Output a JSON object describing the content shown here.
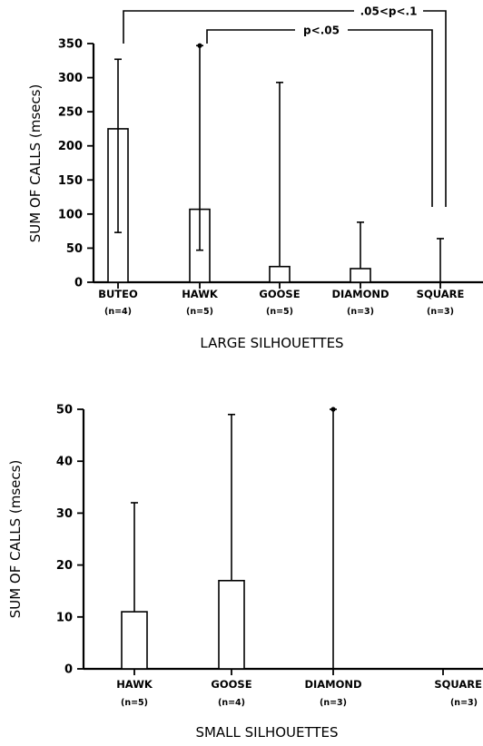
{
  "chart_data": [
    {
      "type": "bar",
      "categories": [
        "BUTEO",
        "HAWK",
        "GOOSE",
        "DIAMOND",
        "SQUARE"
      ],
      "sample_sizes": [
        "(n=4)",
        "(n=5)",
        "(n=5)",
        "(n=3)",
        "(n=3)"
      ],
      "values": [
        225,
        107,
        23,
        20,
        0
      ],
      "error_lower": [
        73,
        47,
        null,
        null,
        null
      ],
      "error_upper": [
        327,
        347,
        293,
        88,
        64
      ],
      "asterisk_on_error": [
        false,
        true,
        false,
        false,
        false
      ],
      "xlabel": "LARGE SILHOUETTES",
      "ylabel": "SUM OF CALLS (msecs)",
      "ylim": [
        0,
        350
      ],
      "yticks": [
        0,
        50,
        100,
        150,
        200,
        250,
        300,
        350
      ],
      "annotations": [
        {
          "text": ".05<p<.1",
          "from": "BUTEO",
          "to": "SQUARE"
        },
        {
          "text": "p<.05",
          "from": "HAWK",
          "to": "SQUARE"
        }
      ]
    },
    {
      "type": "bar",
      "categories": [
        "HAWK",
        "GOOSE",
        "DIAMOND",
        "SQUARE"
      ],
      "sample_sizes": [
        "(n=5)",
        "(n=4)",
        "(n=3)",
        "(n=3)"
      ],
      "values": [
        11,
        17,
        0,
        0
      ],
      "error_lower": [
        null,
        null,
        null,
        null
      ],
      "error_upper": [
        32,
        49,
        50,
        null
      ],
      "asterisk_on_error": [
        false,
        false,
        true,
        false
      ],
      "xlabel": "SMALL SILHOUETTES",
      "ylabel": "SUM OF CALLS (msecs)",
      "ylim": [
        0,
        50
      ],
      "yticks": [
        0,
        10,
        20,
        30,
        40,
        50
      ]
    }
  ]
}
